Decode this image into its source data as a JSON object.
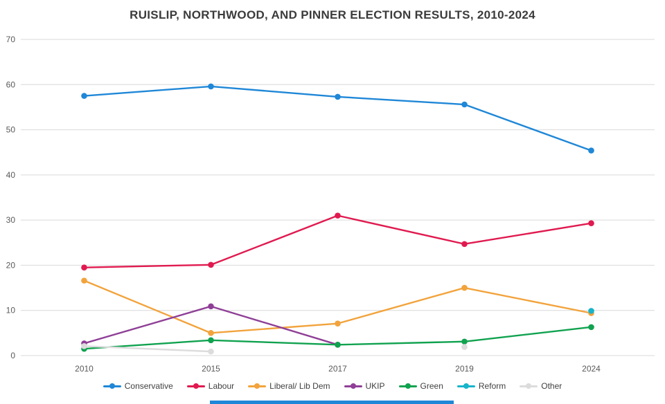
{
  "title": "RUISLIP, NORTHWOOD, AND PINNER ELECTION RESULTS, 2010-2024",
  "chart_data": {
    "type": "line",
    "categories": [
      "2010",
      "2015",
      "2017",
      "2019",
      "2024"
    ],
    "series": [
      {
        "name": "Conservative",
        "color": "#1f87d7",
        "values": [
          57.5,
          59.6,
          57.3,
          55.6,
          45.4
        ]
      },
      {
        "name": "Labour",
        "color": "#e01a4f",
        "values": [
          19.5,
          20.1,
          31.0,
          24.7,
          29.3
        ]
      },
      {
        "name": "Liberal/ Lib Dem",
        "color": "#f2a33c",
        "values": [
          16.6,
          5.0,
          7.1,
          15.0,
          9.4
        ]
      },
      {
        "name": "UKIP",
        "color": "#8f3f97",
        "values": [
          2.7,
          10.9,
          2.4,
          null,
          null
        ]
      },
      {
        "name": "Green",
        "color": "#10a24f",
        "values": [
          1.5,
          3.4,
          2.4,
          3.1,
          6.3
        ]
      },
      {
        "name": "Reform",
        "color": "#18b4c9",
        "values": [
          null,
          null,
          null,
          null,
          9.9
        ]
      },
      {
        "name": "Other",
        "color": "#dcdcdc",
        "values": [
          2.1,
          0.9,
          null,
          1.9,
          null
        ]
      }
    ],
    "title": "RUISLIP, NORTHWOOD, AND PINNER ELECTION RESULTS, 2010-2024",
    "xlabel": "",
    "ylabel": "",
    "ylim": [
      0,
      70
    ],
    "ytick_step": 10,
    "yticks": [
      "0",
      "10",
      "20",
      "30",
      "40",
      "50",
      "60",
      "70"
    ],
    "grid": true,
    "legend_position": "bottom"
  },
  "colors": {
    "grid": "#d9d9d9",
    "axis_text": "#595959",
    "title_text": "#3b3b3b",
    "background": "#ffffff",
    "scrollbar": "#1f87d7"
  }
}
